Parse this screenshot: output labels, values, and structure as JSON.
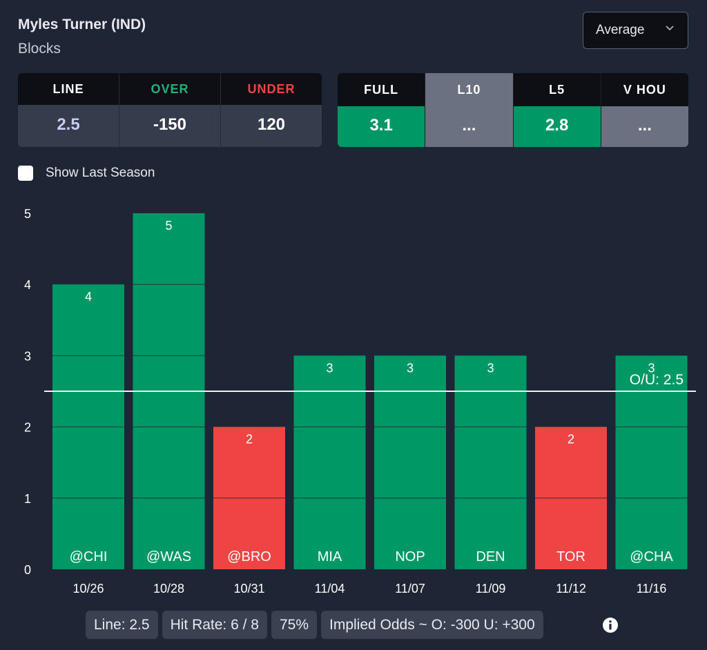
{
  "header": {
    "player": "Myles Turner (IND)",
    "stat": "Blocks",
    "dropdown_value": "Average"
  },
  "line_table": {
    "headers": [
      {
        "label": "LINE",
        "color": "#ffffff"
      },
      {
        "label": "OVER",
        "color": "#22b07d"
      },
      {
        "label": "UNDER",
        "color": "#ef4444"
      }
    ],
    "values": [
      "2.5",
      "-150",
      "120"
    ],
    "value_colors": [
      "#c7cdf5",
      "#ffffff",
      "#ffffff"
    ]
  },
  "avg_table": [
    {
      "label": "FULL",
      "value": "3.1",
      "status": "over"
    },
    {
      "label": "L10",
      "value": "...",
      "status": "neutral",
      "selected": true
    },
    {
      "label": "L5",
      "value": "2.8",
      "status": "over"
    },
    {
      "label": "V HOU",
      "value": "...",
      "status": "neutral"
    }
  ],
  "checkbox": {
    "label": "Show Last Season",
    "checked": false
  },
  "colors": {
    "over": "#009966",
    "under": "#ef4444",
    "neutral": "#6b7180",
    "background": "#1e2535"
  },
  "chart_data": {
    "type": "bar",
    "categories": [
      "10/26",
      "10/28",
      "10/31",
      "11/04",
      "11/07",
      "11/09",
      "11/12",
      "11/16"
    ],
    "opponents": [
      "@CHI",
      "@WAS",
      "@BRO",
      "MIA",
      "NOP",
      "DEN",
      "TOR",
      "@CHA"
    ],
    "values": [
      4,
      5,
      2,
      3,
      3,
      3,
      2,
      3
    ],
    "ylim": [
      0,
      5
    ],
    "yticks": [
      0,
      1,
      2,
      3,
      4,
      5
    ],
    "line_value": 2.5,
    "line_label": "O/U: 2.5",
    "grid": true
  },
  "footer": {
    "line": "Line: 2.5",
    "hit_rate": "Hit Rate: 6 / 8",
    "pct": "75%",
    "implied": "Implied Odds ~ O: -300 U: +300"
  }
}
